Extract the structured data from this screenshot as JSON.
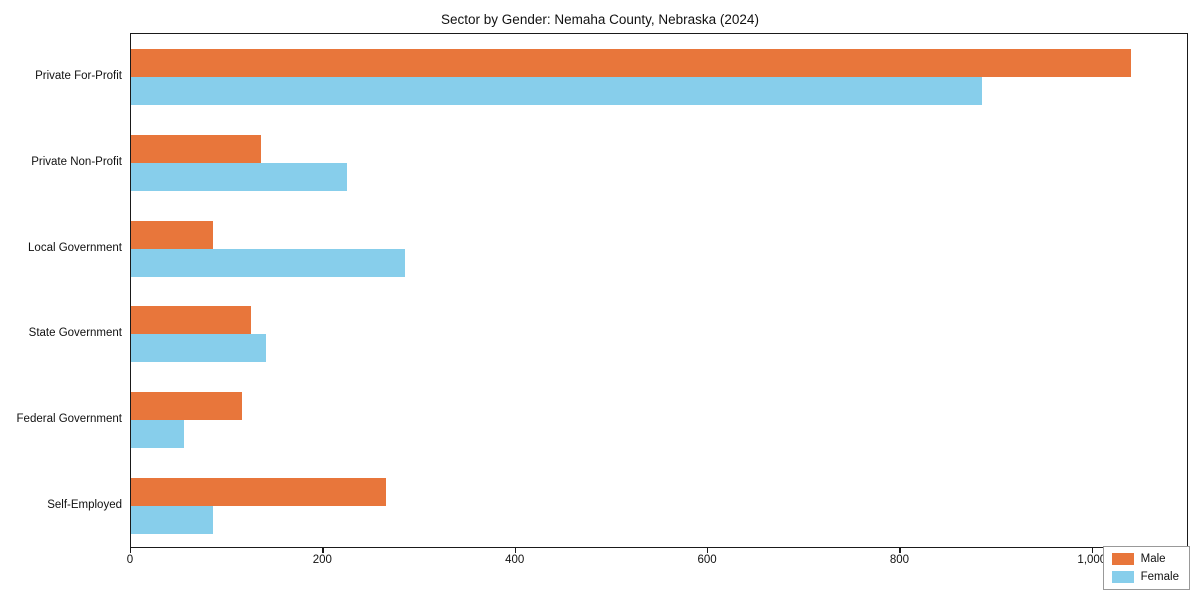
{
  "title": "Sector by Gender: Nemaha County, Nebraska (2024)",
  "chart_data": {
    "type": "bar",
    "orientation": "horizontal",
    "title": "Sector by Gender: Nemaha County, Nebraska (2024)",
    "categories": [
      "Private For-Profit",
      "Private Non-Profit",
      "Local Government",
      "State Government",
      "Federal Government",
      "Self-Employed"
    ],
    "series": [
      {
        "name": "Male",
        "color": "#e8763b",
        "values": [
          1040,
          135,
          85,
          125,
          115,
          265
        ]
      },
      {
        "name": "Female",
        "color": "#87ceeb",
        "values": [
          885,
          225,
          285,
          140,
          55,
          85
        ]
      }
    ],
    "xlabel": "",
    "ylabel": "",
    "xlim": [
      0,
      1100
    ],
    "xticks": [
      0,
      200,
      400,
      600,
      800,
      1000
    ],
    "xtick_labels": [
      "0",
      "200",
      "400",
      "600",
      "800",
      "1,000"
    ],
    "legend_position": "lower right",
    "grid": false
  }
}
